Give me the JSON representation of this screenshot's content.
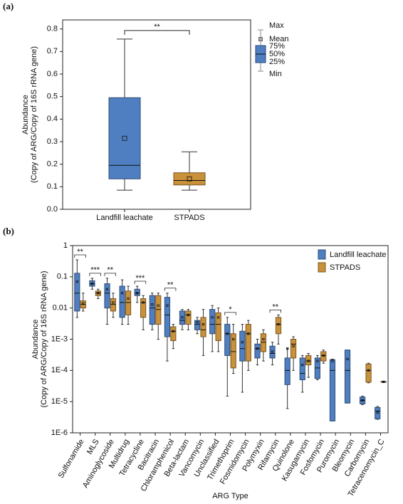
{
  "chart_data": [
    {
      "type": "box",
      "panel_label": "(a)",
      "y_label": [
        "Abundance",
        "(Copy of ARG/Copy of 16S rRNA gene)"
      ],
      "categories": [
        "Landfill leachate",
        "STPADS"
      ],
      "colors": [
        "#4f7fc1",
        "#c9913a"
      ],
      "boxes": [
        {
          "min": 0.085,
          "q1": 0.135,
          "median": 0.195,
          "q3": 0.495,
          "max": 0.755,
          "mean": 0.315
        },
        {
          "min": 0.085,
          "q1": 0.108,
          "median": 0.128,
          "q3": 0.162,
          "max": 0.255,
          "mean": 0.135
        }
      ],
      "significance": "**",
      "ylim": [
        0,
        0.84
      ],
      "yticks": [
        {
          "value": 0,
          "label": "0.0"
        },
        0.1,
        0.2,
        0.3,
        0.4,
        0.5,
        0.6,
        0.7,
        0.8
      ],
      "legend_labels": {
        "max": "Max",
        "mean": "Mean",
        "q3": "75%",
        "median": "50%",
        "q1": "25%",
        "min": "Min"
      }
    },
    {
      "type": "box",
      "panel_label": "(b)",
      "log_scale": true,
      "legend": "top-right",
      "x_label": "ARG Type",
      "y_label": [
        "Abundance",
        "(Copy of ARG/Copy of 16S rRNA gene)"
      ],
      "categories": [
        "Sulfonamide",
        "MLS",
        "Aminoglycoside",
        "Multidrug",
        "Tetracycline",
        "Bacitracin",
        "Chloramphenicol",
        "Beta-lactam",
        "Vancomycin",
        "Unclassified",
        "Trimethoprim",
        "Fosmidomycin",
        "Polymyxin",
        "Rifamycin",
        "Quinolone",
        "Kasugamycin",
        "Fosfomycin",
        "Puromycin",
        "Bleomycin",
        "Carbomycin",
        "Tetracenomycin_C"
      ],
      "series": [
        {
          "name": "Landfill leachate",
          "color": "#4f7fc1",
          "values": [
            {
              "min": 0.005,
              "q1": 0.008,
              "median": 0.03,
              "q3": 0.13,
              "max": 0.35,
              "mean": 0.07
            },
            {
              "min": 0.04,
              "q1": 0.05,
              "median": 0.06,
              "q3": 0.075,
              "max": 0.09,
              "mean": 0.06
            },
            {
              "min": 0.003,
              "q1": 0.01,
              "median": 0.03,
              "q3": 0.06,
              "max": 0.09,
              "mean": 0.04
            },
            {
              "min": 0.003,
              "q1": 0.005,
              "median": 0.015,
              "q3": 0.05,
              "max": 0.08,
              "mean": 0.03
            },
            {
              "min": 0.015,
              "q1": 0.025,
              "median": 0.03,
              "q3": 0.04,
              "max": 0.05,
              "mean": 0.03
            },
            {
              "min": 0.002,
              "q1": 0.003,
              "median": 0.01,
              "q3": 0.025,
              "max": 0.03,
              "mean": 0.013
            },
            {
              "min": 0.0002,
              "q1": 0.0012,
              "median": 0.006,
              "q3": 0.022,
              "max": 0.03,
              "mean": 0.012
            },
            {
              "min": 0.002,
              "q1": 0.003,
              "median": 0.004,
              "q3": 0.008,
              "max": 0.009,
              "mean": 0.005
            },
            {
              "min": 0.0015,
              "q1": 0.002,
              "median": 0.003,
              "q3": 0.004,
              "max": 0.005,
              "mean": 0.0035
            },
            {
              "min": 0.0004,
              "q1": 0.0015,
              "median": 0.003,
              "q3": 0.009,
              "max": 0.012,
              "mean": 0.005
            },
            {
              "min": 1.5e-05,
              "q1": 0.0003,
              "median": 0.0015,
              "q3": 0.003,
              "max": 0.005,
              "mean": 0.0015
            },
            {
              "min": 2e-05,
              "q1": 0.0002,
              "median": 0.0005,
              "q3": 0.0018,
              "max": 0.003,
              "mean": 0.0008
            },
            {
              "min": 0.00015,
              "q1": 0.00025,
              "median": 0.0005,
              "q3": 0.0007,
              "max": 0.001,
              "mean": 0.0005
            },
            {
              "min": 0.00015,
              "q1": 0.00025,
              "median": 0.00035,
              "q3": 0.0006,
              "max": 0.0008,
              "mean": 0.0004
            },
            {
              "min": 6e-06,
              "q1": 3.5e-05,
              "median": 0.0001,
              "q3": 0.00025,
              "max": 0.0005,
              "mean": 0.0005
            },
            {
              "min": 2e-05,
              "q1": 5e-05,
              "median": 8e-05,
              "q3": 0.00025,
              "max": 0.0003,
              "mean": 0.00015
            },
            {
              "min": 5e-05,
              "q1": 5.5e-05,
              "median": 0.00012,
              "q3": 0.00025,
              "max": 0.0003,
              "mean": 0.0002
            },
            {
              "min": 2.4e-06,
              "q1": 2.4e-06,
              "median": 0.0001,
              "q3": 0.00022,
              "max": 0.00023,
              "mean": 0.0002
            },
            {
              "min": 9e-06,
              "q1": 9e-06,
              "median": 0.0001,
              "q3": 0.00045,
              "max": 0.00045,
              "mean": 0.00023
            },
            {
              "min": 8e-06,
              "q1": 8.5e-06,
              "median": 1.1e-05,
              "q3": 1.4e-05,
              "max": 1.5e-05,
              "mean": 1.1e-05
            },
            {
              "min": 2.7e-06,
              "q1": 2.8e-06,
              "median": 5e-06,
              "q3": 6.5e-06,
              "max": 7e-06,
              "mean": 4.5e-06
            }
          ]
        },
        {
          "name": "STPADS",
          "color": "#c9913a",
          "values": [
            {
              "min": 0.008,
              "q1": 0.01,
              "median": 0.013,
              "q3": 0.017,
              "max": 0.03,
              "mean": 0.014
            },
            {
              "min": 0.02,
              "q1": 0.025,
              "median": 0.03,
              "q3": 0.035,
              "max": 0.04,
              "mean": 0.03
            },
            {
              "min": 0.005,
              "q1": 0.008,
              "median": 0.013,
              "q3": 0.02,
              "max": 0.03,
              "mean": 0.015
            },
            {
              "min": 0.003,
              "q1": 0.006,
              "median": 0.015,
              "q3": 0.035,
              "max": 0.05,
              "mean": 0.02
            },
            {
              "min": 0.002,
              "q1": 0.005,
              "median": 0.015,
              "q3": 0.02,
              "max": 0.025,
              "mean": 0.015
            },
            {
              "min": 0.001,
              "q1": 0.003,
              "median": 0.009,
              "q3": 0.025,
              "max": 0.03,
              "mean": 0.012
            },
            {
              "min": 0.0005,
              "q1": 0.0009,
              "median": 0.0018,
              "q3": 0.0025,
              "max": 0.003,
              "mean": 0.0018
            },
            {
              "min": 0.002,
              "q1": 0.003,
              "median": 0.006,
              "q3": 0.008,
              "max": 0.009,
              "mean": 0.006
            },
            {
              "min": 0.0003,
              "q1": 0.0012,
              "median": 0.002,
              "q3": 0.005,
              "max": 0.009,
              "mean": 0.003
            },
            {
              "min": 0.0004,
              "q1": 0.0009,
              "median": 0.003,
              "q3": 0.007,
              "max": 0.01,
              "mean": 0.005
            },
            {
              "min": 8e-05,
              "q1": 0.00012,
              "median": 0.0004,
              "q3": 0.0015,
              "max": 0.003,
              "mean": 0.001
            },
            {
              "min": 0.0001,
              "q1": 0.0002,
              "median": 0.0015,
              "q3": 0.003,
              "max": 0.004,
              "mean": 0.0015
            },
            {
              "min": 0.0002,
              "q1": 0.0004,
              "median": 0.0008,
              "q3": 0.0015,
              "max": 0.002,
              "mean": 0.001
            },
            {
              "min": 0.0007,
              "q1": 0.0015,
              "median": 0.003,
              "q3": 0.005,
              "max": 0.006,
              "mean": 0.003
            },
            {
              "min": 0.0001,
              "q1": 0.00025,
              "median": 0.0007,
              "q3": 0.001,
              "max": 0.0012,
              "mean": 0.0006
            },
            {
              "min": 6e-05,
              "q1": 0.00015,
              "median": 0.0002,
              "q3": 0.0003,
              "max": 0.00035,
              "mean": 0.0002
            },
            {
              "min": 0.00017,
              "q1": 0.0002,
              "median": 0.0003,
              "q3": 0.0004,
              "max": 0.00045,
              "mean": 0.0003
            },
            null,
            null,
            {
              "min": 4e-05,
              "q1": 4.2e-05,
              "median": 0.0001,
              "q3": 0.00016,
              "max": 0.00017,
              "mean": 0.0001
            },
            {
              "min": 4.2e-05,
              "q1": 4.3e-05,
              "median": 4.3e-05,
              "q3": 4.4e-05,
              "max": 4.5e-05,
              "mean": 4.3e-05
            }
          ]
        }
      ],
      "significance": [
        "**",
        "***",
        "**",
        null,
        "***",
        null,
        "**",
        null,
        null,
        null,
        "*",
        null,
        null,
        "**",
        null,
        null,
        null,
        null,
        null,
        null,
        null
      ],
      "ylim": [
        1e-06,
        1
      ],
      "yticks": [
        {
          "value": 1e-06,
          "label": "1E-6"
        },
        {
          "value": 1e-05,
          "label": "1E-5"
        },
        {
          "value": 0.0001,
          "label": "1E-4"
        },
        {
          "value": 0.001,
          "label": "1E-3"
        },
        0.01,
        0.1,
        1
      ]
    }
  ]
}
